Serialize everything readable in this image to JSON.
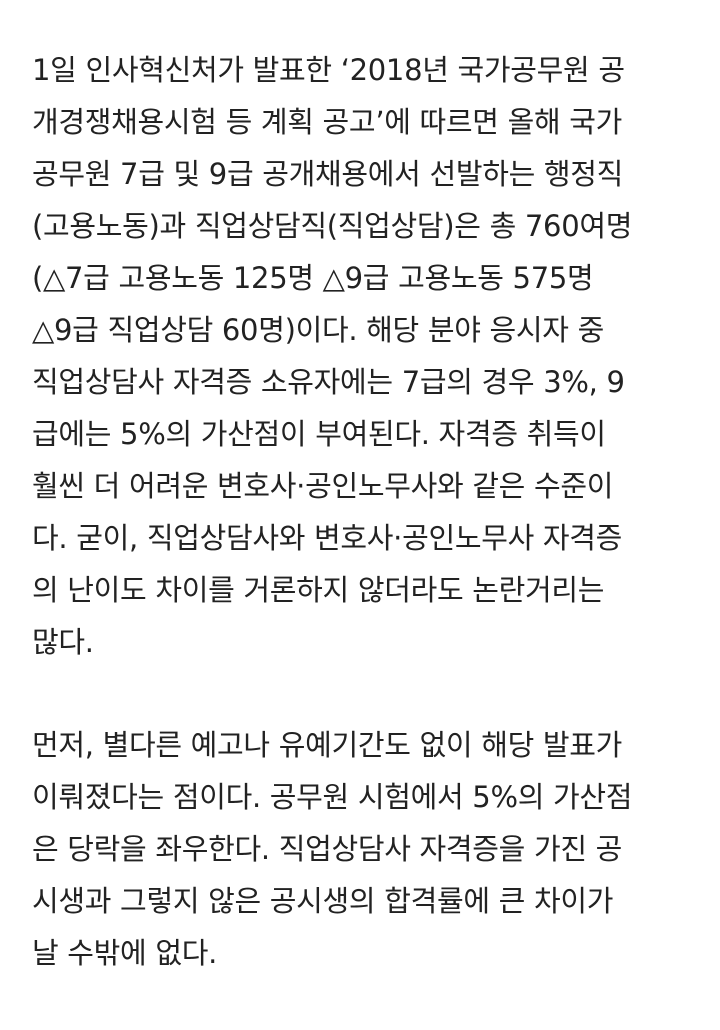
{
  "paragraphs": [
    {
      "lines": [
        "1일 인사혁신처가 발표한 ‘2018년 국가공무원 공",
        "개경쟁채용시험 등 계획 공고’에 따르면 올해 국가",
        "공무원 7급 및 9급 공개채용에서 선발하는 행정직",
        "(고용노동)과 직업상담직(직업상담)은 총 760여명",
        "(△7급 고용노동 125명 △9급 고용노동 575명",
        "△9급 직업상담 60명)이다. 해당 분야 응시자 중",
        "직업상담사 자격증 소유자에는 7급의 경우 3%, 9",
        "급에는 5%의 가산점이 부여된다. 자격증 취득이",
        "훨씬 더 어려운 변호사·공인노무사와 같은 수준이",
        "다. 굳이, 직업상담사와 변호사·공인노무사 자격증",
        "의 난이도 차이를 거론하지 않더라도 논란거리는",
        "많다."
      ]
    },
    {
      "lines": [
        "먼저, 별다른 예고나 유예기간도 없이 해당 발표가",
        "이뤄졌다는 점이다. 공무원 시험에서 5%의 가산점",
        "은 당락을 좌우한다. 직업상담사 자격증을 가진 공",
        "시생과 그렇지 않은 공시생의 합격률에 큰 차이가",
        "날 수밖에 없다."
      ]
    }
  ]
}
